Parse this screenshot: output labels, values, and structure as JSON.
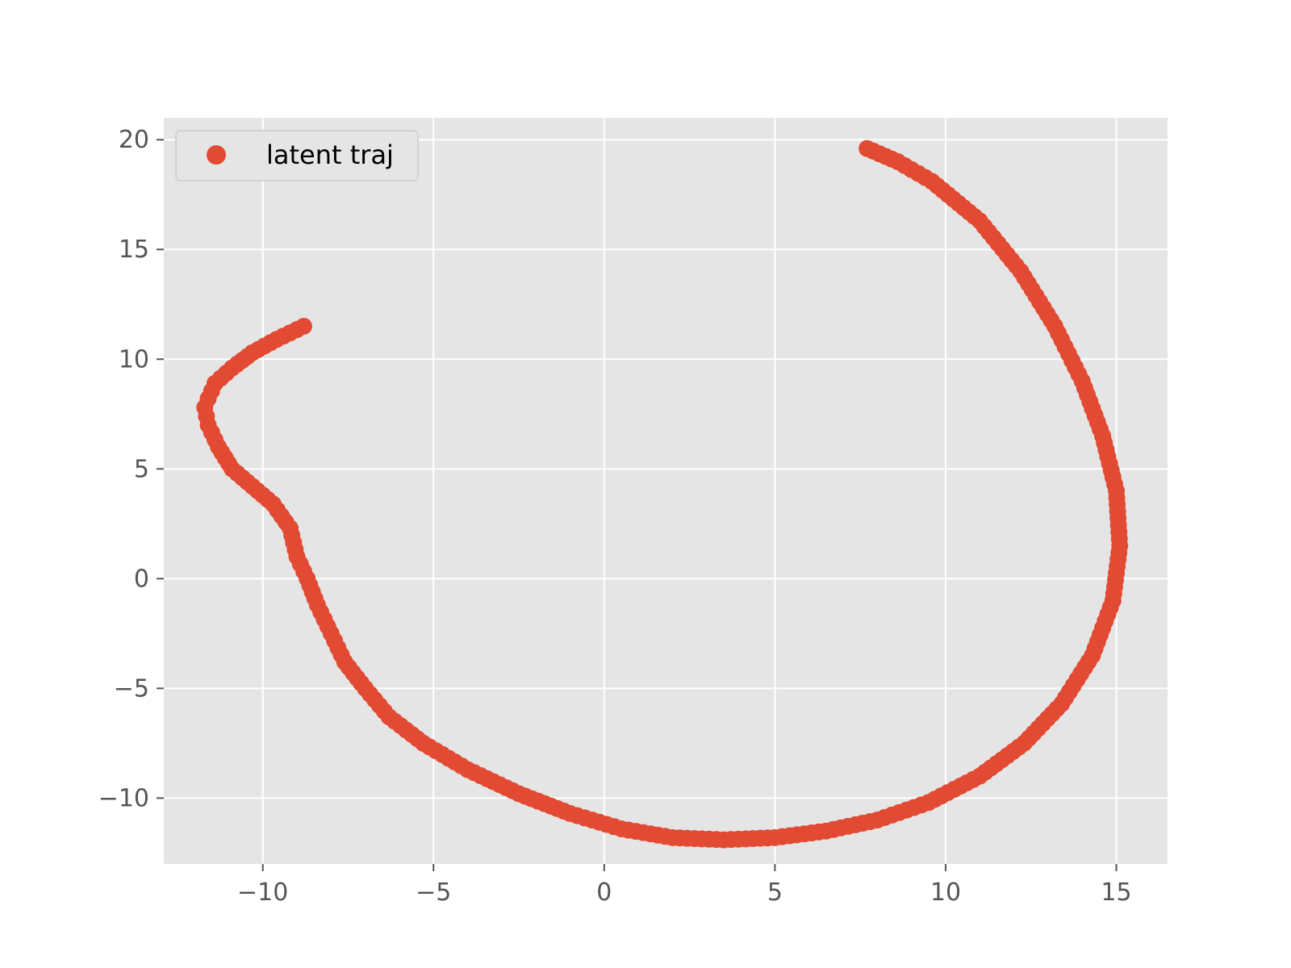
{
  "chart_data": {
    "type": "scatter",
    "title": "",
    "xlabel": "",
    "ylabel": "",
    "xlim": [
      -12.9,
      16.5
    ],
    "ylim": [
      -13.0,
      21.0
    ],
    "xticks": [
      -10,
      -5,
      0,
      5,
      10,
      15
    ],
    "yticks": [
      -10,
      -5,
      0,
      5,
      10,
      15,
      20
    ],
    "xtick_labels": [
      "−10",
      "−5",
      "0",
      "5",
      "10",
      "15"
    ],
    "ytick_labels": [
      "−10",
      "−5",
      "0",
      "5",
      "10",
      "15",
      "20"
    ],
    "grid": true,
    "legend_position": "top-left",
    "background_color": "#e5e5e5",
    "series": [
      {
        "name": "latent traj",
        "color": "#e24a33",
        "marker": "circle",
        "points": [
          [
            -8.8,
            11.5
          ],
          [
            -9.6,
            10.9
          ],
          [
            -10.3,
            10.3
          ],
          [
            -10.9,
            9.6
          ],
          [
            -11.4,
            8.9
          ],
          [
            -11.6,
            8.2
          ],
          [
            -11.7,
            7.8
          ],
          [
            -11.6,
            7.0
          ],
          [
            -11.3,
            6.0
          ],
          [
            -10.9,
            5.0
          ],
          [
            -10.3,
            4.2
          ],
          [
            -9.7,
            3.4
          ],
          [
            -9.2,
            2.3
          ],
          [
            -9.0,
            1.0
          ],
          [
            -8.7,
            0.0
          ],
          [
            -8.4,
            -1.2
          ],
          [
            -8.0,
            -2.5
          ],
          [
            -7.6,
            -3.8
          ],
          [
            -7.0,
            -5.0
          ],
          [
            -6.3,
            -6.3
          ],
          [
            -5.3,
            -7.5
          ],
          [
            -4.0,
            -8.7
          ],
          [
            -2.5,
            -9.8
          ],
          [
            -1.0,
            -10.7
          ],
          [
            0.5,
            -11.4
          ],
          [
            2.0,
            -11.8
          ],
          [
            3.5,
            -11.9
          ],
          [
            5.0,
            -11.8
          ],
          [
            6.5,
            -11.5
          ],
          [
            8.0,
            -11.0
          ],
          [
            9.5,
            -10.2
          ],
          [
            11.0,
            -9.0
          ],
          [
            12.3,
            -7.5
          ],
          [
            13.4,
            -5.7
          ],
          [
            14.3,
            -3.5
          ],
          [
            14.9,
            -1.0
          ],
          [
            15.1,
            1.5
          ],
          [
            15.0,
            4.0
          ],
          [
            14.6,
            6.5
          ],
          [
            14.0,
            9.0
          ],
          [
            13.2,
            11.5
          ],
          [
            12.2,
            14.0
          ],
          [
            11.0,
            16.3
          ],
          [
            9.6,
            18.1
          ],
          [
            8.6,
            19.0
          ],
          [
            7.7,
            19.6
          ]
        ]
      }
    ]
  }
}
